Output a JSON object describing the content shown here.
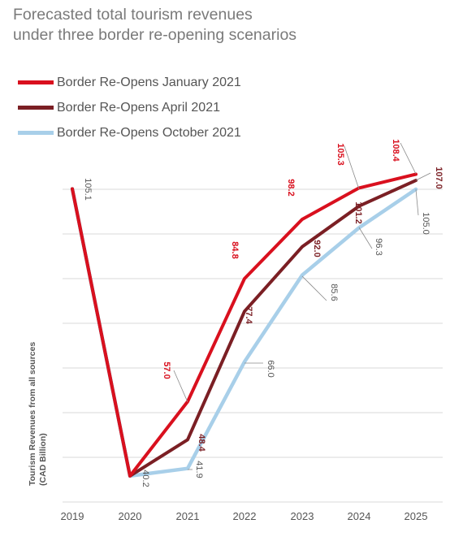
{
  "title_line1": "Forecasted total tourism revenues",
  "title_line2": "under three border re-opening scenarios",
  "colors": {
    "jan": "#d9101e",
    "apr": "#7b1f24",
    "oct": "#a8cfe9",
    "axis_text": "#555555",
    "grid": "#d9d9d9",
    "leader": "#8a8a8a"
  },
  "chart_data": {
    "type": "line",
    "title": "Forecasted total tourism revenues under three border re-opening scenarios",
    "ylabel_line1": "Tourism Revenues from all sources",
    "ylabel_line2": "(CAD Billion)",
    "xlabel": "",
    "categories": [
      "2019",
      "2020",
      "2021",
      "2022",
      "2023",
      "2024",
      "2025"
    ],
    "ylim": [
      35,
      110
    ],
    "grid": "horizontal",
    "legend_position": "top-left",
    "series": [
      {
        "name": "Border Re-Opens January 2021",
        "color_key": "jan",
        "values": [
          105.1,
          40.2,
          57.0,
          84.8,
          98.2,
          105.3,
          108.4
        ],
        "labels": [
          "",
          "",
          "57.0",
          "84.8",
          "98.2",
          "105.3",
          "108.4"
        ]
      },
      {
        "name": "Border Re-Opens April 2021",
        "color_key": "apr",
        "values": [
          105.1,
          40.2,
          48.4,
          77.4,
          92.0,
          101.2,
          107.0
        ],
        "labels": [
          "",
          "",
          "48.4",
          "77.4",
          "92.0",
          "101.2",
          "107.0"
        ]
      },
      {
        "name": "Border Re-Opens October 2021",
        "color_key": "oct",
        "values": [
          105.1,
          40.2,
          41.9,
          66.0,
          85.6,
          96.3,
          105.0
        ],
        "labels": [
          "105.1",
          "40.2",
          "41.9",
          "66.0",
          "85.6",
          "96.3",
          "105.0"
        ]
      }
    ]
  }
}
